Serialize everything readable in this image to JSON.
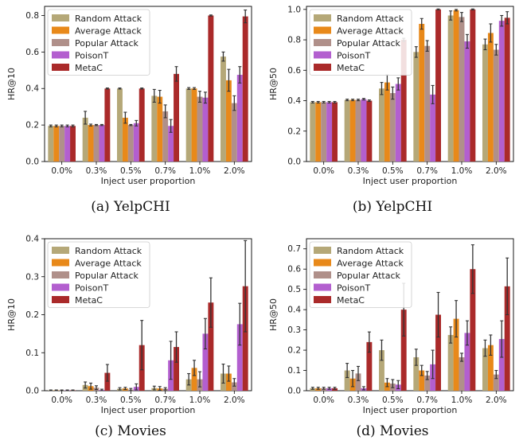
{
  "colors": [
    "#b5a878",
    "#e8891a",
    "#b0908a",
    "#b35fcf",
    "#aa2a2a"
  ],
  "chart_data": [
    {
      "type": "bar",
      "caption": "(a)  YelpCHI",
      "xlabel": "Inject user proportion",
      "ylabel": "HR@10",
      "categories": [
        "0.0%",
        "0.3%",
        "0.5%",
        "0.7%",
        "1.0%",
        "2.0%"
      ],
      "ylim": [
        0,
        0.85
      ],
      "yticks": [
        "0.0",
        "0.2",
        "0.4",
        "0.6",
        "0.8"
      ],
      "ytick_values": [
        0,
        0.2,
        0.4,
        0.6,
        0.8
      ],
      "legend": "top-left",
      "series": [
        {
          "name": "Random Attack",
          "values": [
            0.195,
            0.24,
            0.4,
            0.36,
            0.4,
            0.575
          ],
          "errors": [
            0.005,
            0.035,
            0.003,
            0.035,
            0.005,
            0.025
          ]
        },
        {
          "name": "Average Attack",
          "values": [
            0.195,
            0.2,
            0.24,
            0.355,
            0.4,
            0.445
          ],
          "errors": [
            0.005,
            0.005,
            0.03,
            0.035,
            0.005,
            0.06
          ]
        },
        {
          "name": "Popular Attack",
          "values": [
            0.195,
            0.2,
            0.2,
            0.275,
            0.355,
            0.32
          ],
          "errors": [
            0.005,
            0.003,
            0.003,
            0.035,
            0.03,
            0.04
          ]
        },
        {
          "name": "PoisonT",
          "values": [
            0.195,
            0.2,
            0.21,
            0.195,
            0.35,
            0.475
          ],
          "errors": [
            0.005,
            0.003,
            0.015,
            0.035,
            0.03,
            0.045
          ]
        },
        {
          "name": "MetaC",
          "values": [
            0.195,
            0.4,
            0.4,
            0.48,
            0.8,
            0.795
          ],
          "errors": [
            0.005,
            0.003,
            0.003,
            0.04,
            0.003,
            0.035
          ]
        }
      ]
    },
    {
      "type": "bar",
      "caption": "(b)  YelpCHI",
      "xlabel": "Inject user proportion",
      "ylabel": "HR@50",
      "categories": [
        "0.0%",
        "0.3%",
        "0.5%",
        "0.7%",
        "1.0%",
        "2.0%"
      ],
      "ylim": [
        0,
        1.02
      ],
      "yticks": [
        "0.0",
        "0.2",
        "0.4",
        "0.6",
        "0.8",
        "1.0"
      ],
      "ytick_values": [
        0,
        0.2,
        0.4,
        0.6,
        0.8,
        1.0
      ],
      "legend": "top-left",
      "series": [
        {
          "name": "Random Attack",
          "values": [
            0.39,
            0.405,
            0.48,
            0.72,
            0.96,
            0.77
          ],
          "errors": [
            0.005,
            0.005,
            0.04,
            0.035,
            0.03,
            0.035
          ]
        },
        {
          "name": "Average Attack",
          "values": [
            0.39,
            0.405,
            0.52,
            0.905,
            0.995,
            0.845
          ],
          "errors": [
            0.005,
            0.005,
            0.05,
            0.035,
            0.005,
            0.06
          ]
        },
        {
          "name": "Popular Attack",
          "values": [
            0.39,
            0.405,
            0.45,
            0.76,
            0.95,
            0.735
          ],
          "errors": [
            0.005,
            0.005,
            0.04,
            0.035,
            0.03,
            0.035
          ]
        },
        {
          "name": "PoisonT",
          "values": [
            0.39,
            0.41,
            0.51,
            0.44,
            0.79,
            0.925
          ],
          "errors": [
            0.005,
            0.005,
            0.04,
            0.06,
            0.045,
            0.035
          ]
        },
        {
          "name": "MetaC",
          "values": [
            0.39,
            0.4,
            0.8,
            1.0,
            1.0,
            0.945
          ],
          "errors": [
            0.005,
            0.005,
            0.01,
            0.003,
            0.003,
            0.04
          ]
        }
      ]
    },
    {
      "type": "bar",
      "caption": "(c)  Movies",
      "xlabel": "Inject user proportion",
      "ylabel": "HR@10",
      "categories": [
        "0.0%",
        "0.3%",
        "0.5%",
        "0.7%",
        "1.0%",
        "2.0%"
      ],
      "ylim": [
        0,
        0.4
      ],
      "yticks": [
        "0.0",
        "0.1",
        "0.2",
        "0.3",
        "0.4"
      ],
      "ytick_values": [
        0,
        0.1,
        0.2,
        0.3,
        0.4
      ],
      "legend": "top-left",
      "series": [
        {
          "name": "Random Attack",
          "values": [
            0.001,
            0.015,
            0.005,
            0.007,
            0.03,
            0.045
          ],
          "errors": [
            0.001,
            0.008,
            0.003,
            0.005,
            0.015,
            0.025
          ]
        },
        {
          "name": "Average Attack",
          "values": [
            0.001,
            0.012,
            0.006,
            0.006,
            0.06,
            0.045
          ],
          "errors": [
            0.001,
            0.008,
            0.003,
            0.005,
            0.02,
            0.02
          ]
        },
        {
          "name": "Popular Attack",
          "values": [
            0.001,
            0.008,
            0.003,
            0.005,
            0.03,
            0.022
          ],
          "errors": [
            0.001,
            0.005,
            0.003,
            0.003,
            0.02,
            0.01
          ]
        },
        {
          "name": "PoisonT",
          "values": [
            0.001,
            0.002,
            0.01,
            0.08,
            0.15,
            0.175
          ],
          "errors": [
            0.001,
            0.002,
            0.008,
            0.05,
            0.04,
            0.055
          ]
        },
        {
          "name": "MetaC",
          "values": [
            0.001,
            0.047,
            0.12,
            0.115,
            0.232,
            0.275
          ],
          "errors": [
            0.001,
            0.022,
            0.065,
            0.04,
            0.065,
            0.12
          ]
        }
      ]
    },
    {
      "type": "bar",
      "caption": "(d)  Movies",
      "xlabel": "Inject user proportion",
      "ylabel": "HR@50",
      "categories": [
        "0.0%",
        "0.3%",
        "0.5%",
        "0.7%",
        "1.0%",
        "2.0%"
      ],
      "ylim": [
        0,
        0.75
      ],
      "yticks": [
        "0.0",
        "0.1",
        "0.2",
        "0.3",
        "0.4",
        "0.5",
        "0.6",
        "0.7"
      ],
      "ytick_values": [
        0,
        0.1,
        0.2,
        0.3,
        0.4,
        0.5,
        0.6,
        0.7
      ],
      "legend": "top-left",
      "series": [
        {
          "name": "Random Attack",
          "values": [
            0.012,
            0.1,
            0.2,
            0.165,
            0.275,
            0.21
          ],
          "errors": [
            0.005,
            0.035,
            0.05,
            0.04,
            0.04,
            0.04
          ]
        },
        {
          "name": "Average Attack",
          "values": [
            0.012,
            0.06,
            0.04,
            0.1,
            0.355,
            0.225
          ],
          "errors": [
            0.005,
            0.04,
            0.02,
            0.025,
            0.09,
            0.05
          ]
        },
        {
          "name": "Popular Attack",
          "values": [
            0.012,
            0.085,
            0.035,
            0.075,
            0.165,
            0.08
          ],
          "errors": [
            0.005,
            0.035,
            0.02,
            0.02,
            0.02,
            0.02
          ]
        },
        {
          "name": "PoisonT",
          "values": [
            0.012,
            0.012,
            0.03,
            0.13,
            0.285,
            0.255
          ],
          "errors": [
            0.005,
            0.008,
            0.02,
            0.07,
            0.06,
            0.09
          ]
        },
        {
          "name": "MetaC",
          "values": [
            0.012,
            0.24,
            0.4,
            0.375,
            0.6,
            0.515
          ],
          "errors": [
            0.005,
            0.05,
            0.13,
            0.11,
            0.12,
            0.14
          ]
        }
      ]
    }
  ]
}
